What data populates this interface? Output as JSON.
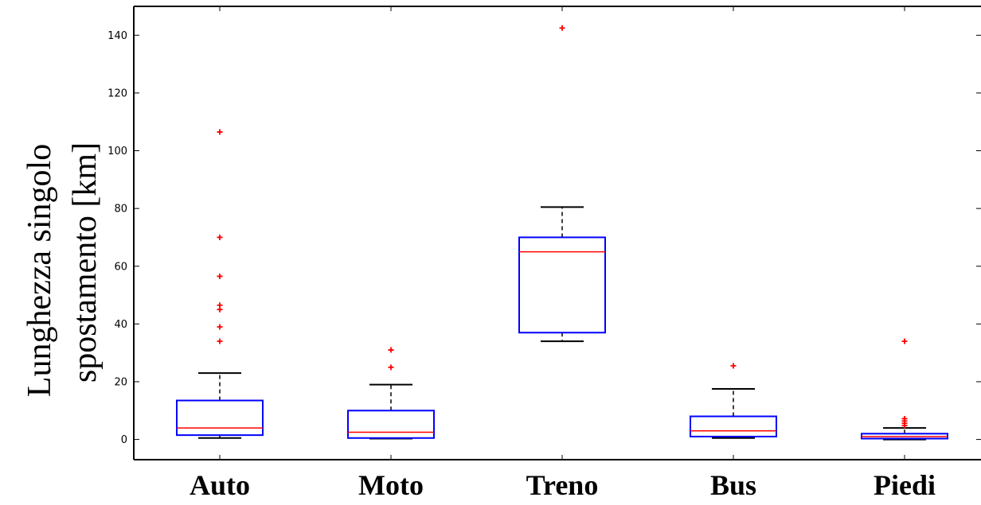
{
  "chart_data": {
    "type": "box",
    "title": "",
    "xlabel": "",
    "ylabel_lines": [
      "Lunghezza singolo",
      "spostamento [km]"
    ],
    "ylim": [
      -7,
      150
    ],
    "yticks": [
      0,
      20,
      40,
      60,
      80,
      100,
      120,
      140
    ],
    "categories": [
      "Auto",
      "Moto",
      "Treno",
      "Bus",
      "Piedi"
    ],
    "boxes": [
      {
        "category": "Auto",
        "whisker_low": 0.5,
        "q1": 1.5,
        "median": 4,
        "q3": 13.5,
        "whisker_high": 23,
        "outliers": [
          34,
          39,
          45,
          46.5,
          56.5,
          70,
          106.5
        ]
      },
      {
        "category": "Moto",
        "whisker_low": 0.3,
        "q1": 0.5,
        "median": 2.5,
        "q3": 10,
        "whisker_high": 19,
        "outliers": [
          25,
          31
        ]
      },
      {
        "category": "Treno",
        "whisker_low": 34,
        "q1": 37,
        "median": 65,
        "q3": 70,
        "whisker_high": 80.5,
        "outliers": [
          142.5
        ]
      },
      {
        "category": "Bus",
        "whisker_low": 0.5,
        "q1": 1,
        "median": 3,
        "q3": 8,
        "whisker_high": 17.5,
        "outliers": [
          25.5
        ]
      },
      {
        "category": "Piedi",
        "whisker_low": 0,
        "q1": 0.3,
        "median": 1,
        "q3": 2,
        "whisker_high": 4,
        "outliers": [
          4.8,
          5.6,
          6.4,
          7.2,
          34
        ]
      }
    ],
    "colors": {
      "box": "#0000ff",
      "median": "#ff0000",
      "outlier": "#ff0000",
      "whisker": "#000000",
      "axis": "#000000"
    },
    "grid": false,
    "legend": "none"
  }
}
